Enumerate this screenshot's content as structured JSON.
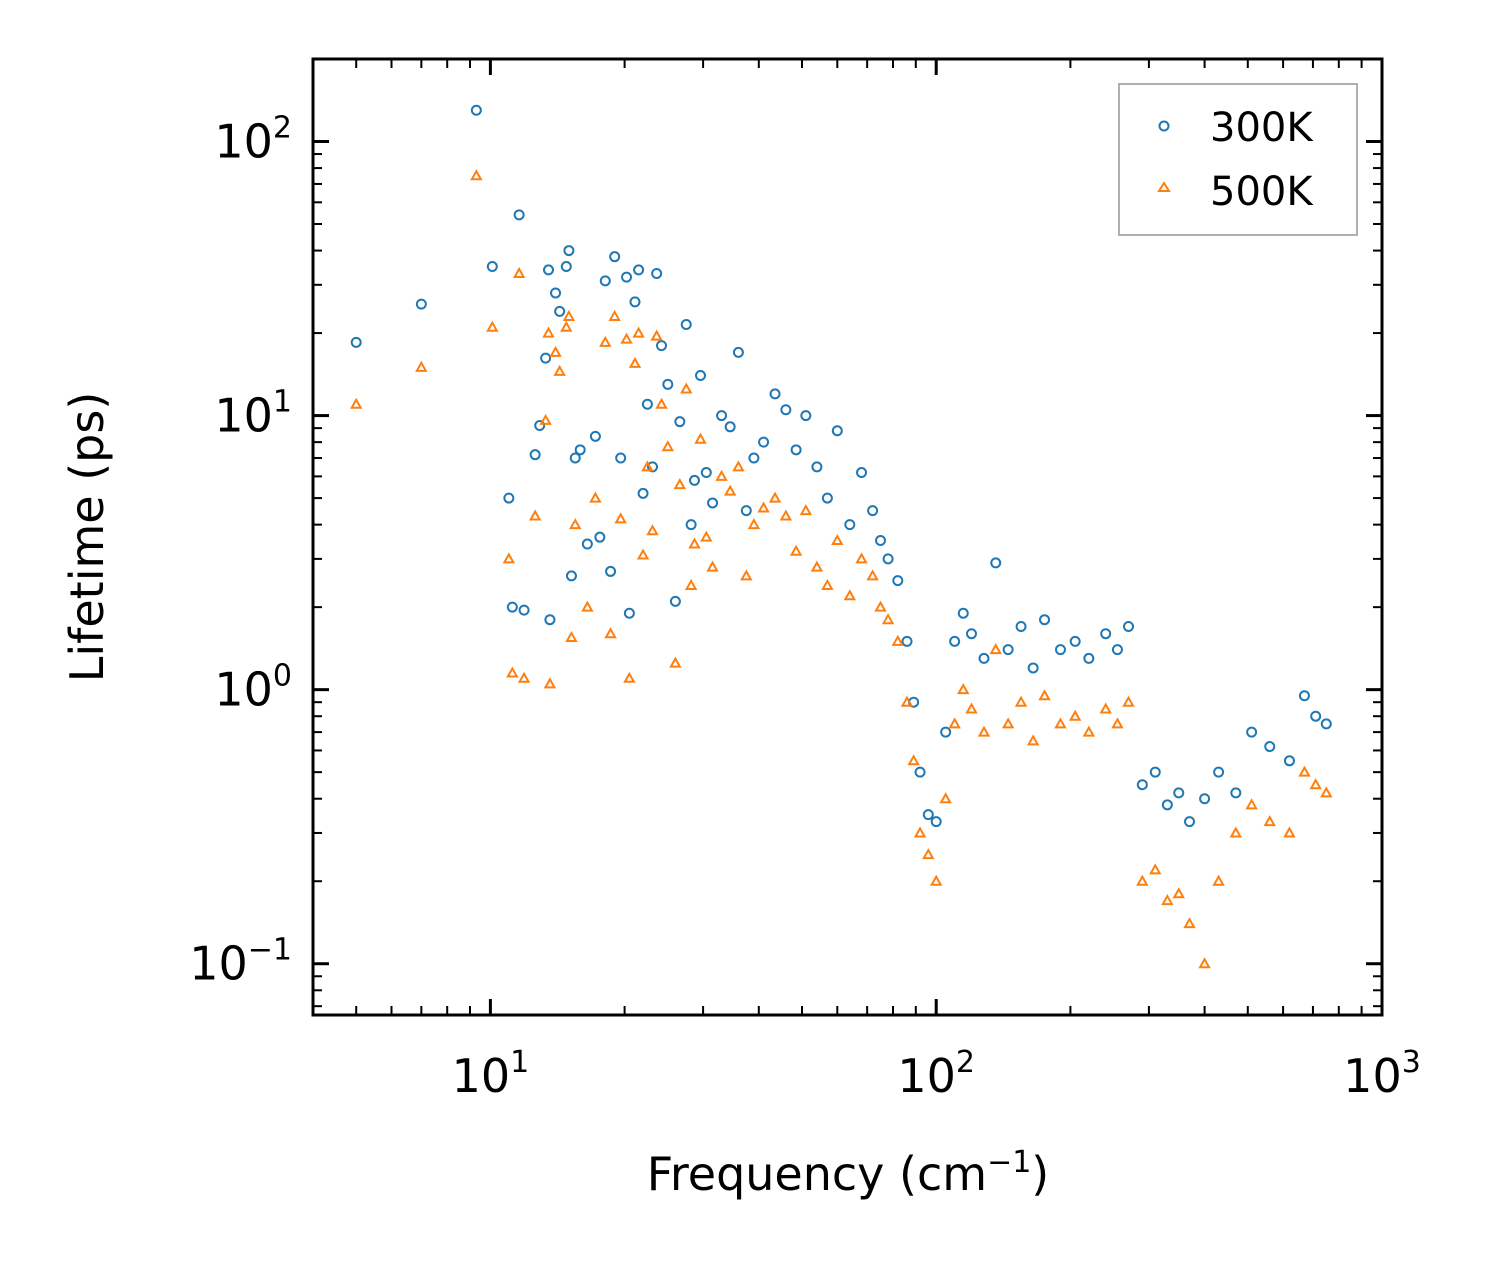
{
  "chart_data": {
    "type": "scatter",
    "title": "",
    "xlabel": "Frequency (cm",
    "xlabel_sup": "−1",
    "xlabel_close": ")",
    "ylabel": "Lifetime (ps)",
    "xscale": "log",
    "yscale": "log",
    "xlim": [
      4,
      1000
    ],
    "ylim": [
      0.065,
      200
    ],
    "xticks": [
      {
        "value": 10,
        "base": "10",
        "exp": "1"
      },
      {
        "value": 100,
        "base": "10",
        "exp": "2"
      },
      {
        "value": 1000,
        "base": "10",
        "exp": "3"
      }
    ],
    "yticks": [
      {
        "value": 0.1,
        "base": "10",
        "exp": "−1"
      },
      {
        "value": 1,
        "base": "10",
        "exp": "0"
      },
      {
        "value": 10,
        "base": "10",
        "exp": "1"
      },
      {
        "value": 100,
        "base": "10",
        "exp": "2"
      }
    ],
    "legend_position": "top-right",
    "series": [
      {
        "name": "300K",
        "marker": "circle",
        "color": "#1f77b4",
        "points": [
          [
            5.0,
            18.5
          ],
          [
            7.0,
            25.5
          ],
          [
            9.3,
            130
          ],
          [
            10.1,
            35
          ],
          [
            11.0,
            5.0
          ],
          [
            11.2,
            2.0
          ],
          [
            11.6,
            54
          ],
          [
            11.9,
            1.95
          ],
          [
            12.6,
            7.2
          ],
          [
            12.9,
            9.2
          ],
          [
            13.3,
            16.2
          ],
          [
            13.5,
            34
          ],
          [
            13.6,
            1.8
          ],
          [
            14.0,
            28
          ],
          [
            14.3,
            24
          ],
          [
            14.8,
            35
          ],
          [
            15.0,
            40
          ],
          [
            15.2,
            2.6
          ],
          [
            15.5,
            7.0
          ],
          [
            15.9,
            7.5
          ],
          [
            16.5,
            3.4
          ],
          [
            17.2,
            8.4
          ],
          [
            17.6,
            3.6
          ],
          [
            18.1,
            31
          ],
          [
            18.6,
            2.7
          ],
          [
            19.0,
            38
          ],
          [
            19.6,
            7.0
          ],
          [
            20.2,
            32
          ],
          [
            20.5,
            1.9
          ],
          [
            21.1,
            26
          ],
          [
            21.5,
            34
          ],
          [
            22.0,
            5.2
          ],
          [
            22.5,
            11
          ],
          [
            23.1,
            6.5
          ],
          [
            23.6,
            33
          ],
          [
            24.2,
            18
          ],
          [
            25.0,
            13
          ],
          [
            26.0,
            2.1
          ],
          [
            26.6,
            9.5
          ],
          [
            27.5,
            21.5
          ],
          [
            28.2,
            4.0
          ],
          [
            28.7,
            5.8
          ],
          [
            29.6,
            14
          ],
          [
            30.5,
            6.2
          ],
          [
            31.5,
            4.8
          ],
          [
            33.0,
            10
          ],
          [
            34.5,
            9.1
          ],
          [
            36.0,
            17
          ],
          [
            37.5,
            4.5
          ],
          [
            39.0,
            7.0
          ],
          [
            41.0,
            8.0
          ],
          [
            43.5,
            12
          ],
          [
            46.0,
            10.5
          ],
          [
            48.5,
            7.5
          ],
          [
            51.0,
            10
          ],
          [
            54.0,
            6.5
          ],
          [
            57.0,
            5.0
          ],
          [
            60.0,
            8.8
          ],
          [
            64.0,
            4.0
          ],
          [
            68.0,
            6.2
          ],
          [
            72.0,
            4.5
          ],
          [
            75.0,
            3.5
          ],
          [
            78.0,
            3.0
          ],
          [
            82.0,
            2.5
          ],
          [
            86.0,
            1.5
          ],
          [
            89.0,
            0.9
          ],
          [
            92.0,
            0.5
          ],
          [
            96.0,
            0.35
          ],
          [
            100.0,
            0.33
          ],
          [
            105.0,
            0.7
          ],
          [
            110.0,
            1.5
          ],
          [
            115.0,
            1.9
          ],
          [
            120.0,
            1.6
          ],
          [
            128.0,
            1.3
          ],
          [
            136.0,
            2.9
          ],
          [
            145.0,
            1.4
          ],
          [
            155.0,
            1.7
          ],
          [
            165.0,
            1.2
          ],
          [
            175.0,
            1.8
          ],
          [
            190.0,
            1.4
          ],
          [
            205.0,
            1.5
          ],
          [
            220.0,
            1.3
          ],
          [
            240.0,
            1.6
          ],
          [
            255.0,
            1.4
          ],
          [
            270.0,
            1.7
          ],
          [
            290.0,
            0.45
          ],
          [
            310.0,
            0.5
          ],
          [
            330.0,
            0.38
          ],
          [
            350.0,
            0.42
          ],
          [
            370.0,
            0.33
          ],
          [
            400.0,
            0.4
          ],
          [
            430.0,
            0.5
          ],
          [
            470.0,
            0.42
          ],
          [
            510.0,
            0.7
          ],
          [
            560.0,
            0.62
          ],
          [
            620.0,
            0.55
          ],
          [
            670.0,
            0.95
          ],
          [
            710.0,
            0.8
          ],
          [
            750.0,
            0.75
          ]
        ]
      },
      {
        "name": "500K",
        "marker": "triangle",
        "color": "#ff7f0e",
        "points": [
          [
            5.0,
            11
          ],
          [
            7.0,
            15
          ],
          [
            9.3,
            75
          ],
          [
            10.1,
            21
          ],
          [
            11.0,
            3.0
          ],
          [
            11.2,
            1.15
          ],
          [
            11.6,
            33
          ],
          [
            11.9,
            1.1
          ],
          [
            12.6,
            4.3
          ],
          [
            13.3,
            9.6
          ],
          [
            13.5,
            20
          ],
          [
            13.6,
            1.05
          ],
          [
            14.0,
            17
          ],
          [
            14.3,
            14.5
          ],
          [
            14.8,
            21
          ],
          [
            15.0,
            23
          ],
          [
            15.2,
            1.55
          ],
          [
            15.5,
            4.0
          ],
          [
            16.5,
            2.0
          ],
          [
            17.2,
            5.0
          ],
          [
            18.1,
            18.5
          ],
          [
            18.6,
            1.6
          ],
          [
            19.0,
            23
          ],
          [
            19.6,
            4.2
          ],
          [
            20.2,
            19
          ],
          [
            20.5,
            1.1
          ],
          [
            21.1,
            15.5
          ],
          [
            21.5,
            20
          ],
          [
            22.0,
            3.1
          ],
          [
            22.5,
            6.5
          ],
          [
            23.1,
            3.8
          ],
          [
            23.6,
            19.5
          ],
          [
            24.2,
            11
          ],
          [
            25.0,
            7.7
          ],
          [
            26.0,
            1.25
          ],
          [
            26.6,
            5.6
          ],
          [
            27.5,
            12.5
          ],
          [
            28.2,
            2.4
          ],
          [
            28.7,
            3.4
          ],
          [
            29.6,
            8.2
          ],
          [
            30.5,
            3.6
          ],
          [
            31.5,
            2.8
          ],
          [
            33.0,
            6.0
          ],
          [
            34.5,
            5.3
          ],
          [
            36.0,
            6.5
          ],
          [
            37.5,
            2.6
          ],
          [
            39.0,
            4.0
          ],
          [
            41.0,
            4.6
          ],
          [
            43.5,
            5.0
          ],
          [
            46.0,
            4.3
          ],
          [
            48.5,
            3.2
          ],
          [
            51.0,
            4.5
          ],
          [
            54.0,
            2.8
          ],
          [
            57.0,
            2.4
          ],
          [
            60.0,
            3.5
          ],
          [
            64.0,
            2.2
          ],
          [
            68.0,
            3.0
          ],
          [
            72.0,
            2.6
          ],
          [
            75.0,
            2.0
          ],
          [
            78.0,
            1.8
          ],
          [
            82.0,
            1.5
          ],
          [
            86.0,
            0.9
          ],
          [
            89.0,
            0.55
          ],
          [
            92.0,
            0.3
          ],
          [
            96.0,
            0.25
          ],
          [
            100.0,
            0.2
          ],
          [
            105.0,
            0.4
          ],
          [
            110.0,
            0.75
          ],
          [
            115.0,
            1.0
          ],
          [
            120.0,
            0.85
          ],
          [
            128.0,
            0.7
          ],
          [
            136.0,
            1.4
          ],
          [
            145.0,
            0.75
          ],
          [
            155.0,
            0.9
          ],
          [
            165.0,
            0.65
          ],
          [
            175.0,
            0.95
          ],
          [
            190.0,
            0.75
          ],
          [
            205.0,
            0.8
          ],
          [
            220.0,
            0.7
          ],
          [
            240.0,
            0.85
          ],
          [
            255.0,
            0.75
          ],
          [
            270.0,
            0.9
          ],
          [
            290.0,
            0.2
          ],
          [
            310.0,
            0.22
          ],
          [
            330.0,
            0.17
          ],
          [
            350.0,
            0.18
          ],
          [
            370.0,
            0.14
          ],
          [
            400.0,
            0.1
          ],
          [
            430.0,
            0.2
          ],
          [
            470.0,
            0.3
          ],
          [
            510.0,
            0.38
          ],
          [
            560.0,
            0.33
          ],
          [
            620.0,
            0.3
          ],
          [
            670.0,
            0.5
          ],
          [
            710.0,
            0.45
          ],
          [
            750.0,
            0.42
          ]
        ]
      }
    ],
    "legend": [
      {
        "label": "300K",
        "marker": "circle",
        "color": "#1f77b4"
      },
      {
        "label": "500K",
        "marker": "triangle",
        "color": "#ff7f0e"
      }
    ]
  }
}
